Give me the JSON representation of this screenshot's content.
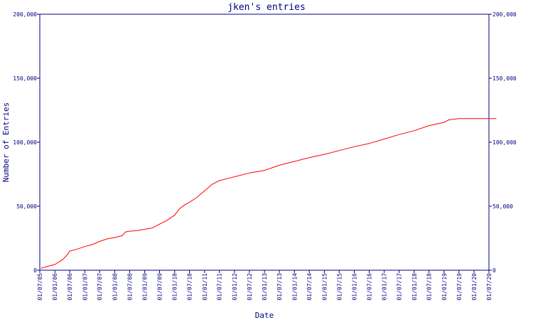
{
  "chart_data": {
    "type": "line",
    "title": "jken's entries",
    "xlabel": "Date",
    "ylabel": "Number of Entries",
    "ylim": [
      0,
      200000
    ],
    "yticks": [
      "0",
      "50,000",
      "100,000",
      "150,000",
      "200,000"
    ],
    "ytick_values": [
      0,
      50000,
      100000,
      150000,
      200000
    ],
    "right_axis_ticks": [
      "0",
      "50,000",
      "100,000",
      "150,000",
      "200,000"
    ],
    "xticks": [
      "01/07/05",
      "01/01/06",
      "01/07/06",
      "01/01/07",
      "01/07/07",
      "01/01/08",
      "01/07/08",
      "01/01/09",
      "01/07/09",
      "01/01/10",
      "01/07/10",
      "01/01/11",
      "01/07/11",
      "01/01/12",
      "01/07/12",
      "01/01/13",
      "01/07/13",
      "01/01/14",
      "01/07/14",
      "01/01/15",
      "01/07/15",
      "01/01/16",
      "01/07/16",
      "01/01/17",
      "01/07/17",
      "01/01/18",
      "01/07/18",
      "01/01/19",
      "01/07/19",
      "01/01/20",
      "01/07/20"
    ],
    "grid": false,
    "colors": {
      "line": "#ff0000",
      "axes": "#000080",
      "text": "#000080"
    },
    "series": [
      {
        "x": [
          "2005-07-15",
          "2005-10-01",
          "2006-01-01",
          "2006-04-01",
          "2006-06-01",
          "2006-07-01",
          "2006-10-01",
          "2007-01-01",
          "2007-04-01",
          "2007-07-01",
          "2007-10-01",
          "2008-01-01",
          "2008-04-01",
          "2008-05-15",
          "2008-07-01",
          "2008-10-01",
          "2009-01-01",
          "2009-04-01",
          "2009-07-01",
          "2009-10-01",
          "2010-01-01",
          "2010-03-01",
          "2010-05-01",
          "2010-07-01",
          "2010-10-01",
          "2011-01-01",
          "2011-04-01",
          "2011-07-01",
          "2011-10-01",
          "2012-01-01",
          "2012-07-01",
          "2013-01-01",
          "2013-07-01",
          "2014-01-01",
          "2014-07-01",
          "2015-01-01",
          "2015-07-01",
          "2016-01-01",
          "2016-07-01",
          "2017-01-01",
          "2017-07-01",
          "2018-01-01",
          "2018-07-01",
          "2019-01-01",
          "2019-03-01",
          "2019-07-01",
          "2020-01-01",
          "2020-07-01",
          "2020-10-01"
        ],
        "values": [
          1500,
          3000,
          4500,
          8000,
          12000,
          15000,
          16500,
          18500,
          20000,
          22500,
          24500,
          25500,
          27000,
          30000,
          30500,
          31000,
          32000,
          33000,
          36000,
          39000,
          43000,
          48000,
          51000,
          53000,
          57000,
          62000,
          67000,
          70000,
          71500,
          73000,
          76000,
          78000,
          82000,
          85000,
          88000,
          90500,
          93500,
          96500,
          99000,
          102500,
          106000,
          109000,
          113000,
          115500,
          117500,
          118500,
          118500,
          118500,
          118500
        ]
      }
    ]
  }
}
